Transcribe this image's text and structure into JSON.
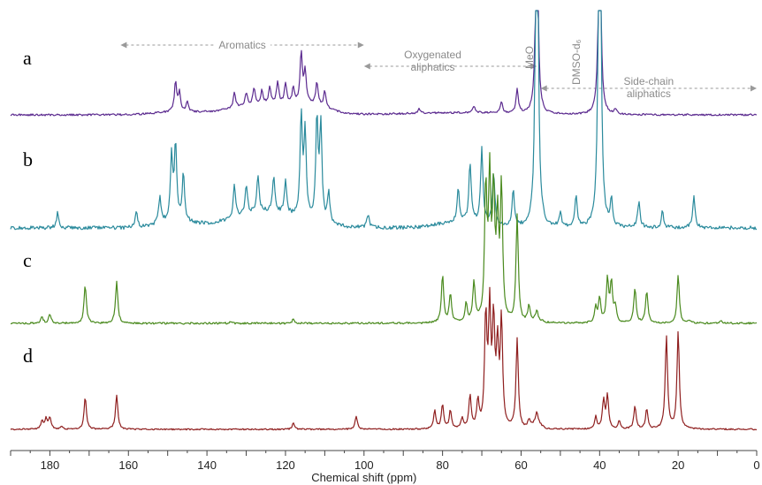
{
  "chart_data": {
    "type": "line",
    "xlabel": "Chemical shift (ppm)",
    "xlim": [
      190,
      0
    ],
    "x_reversed": true,
    "xticks": [
      180,
      160,
      140,
      120,
      100,
      80,
      60,
      40,
      20,
      0
    ],
    "grid": false,
    "series": [
      {
        "name": "a",
        "color": "#5b2a8f",
        "peaks": [
          [
            148,
            0.55
          ],
          [
            147,
            0.35
          ],
          [
            145,
            0.2
          ],
          [
            133,
            0.28
          ],
          [
            130,
            0.25
          ],
          [
            128,
            0.3
          ],
          [
            126,
            0.25
          ],
          [
            124,
            0.3
          ],
          [
            122,
            0.42
          ],
          [
            120,
            0.38
          ],
          [
            118,
            0.3
          ],
          [
            116,
            0.95
          ],
          [
            115,
            0.6
          ],
          [
            112,
            0.42
          ],
          [
            110,
            0.3
          ],
          [
            86,
            0.08
          ],
          [
            72,
            0.12
          ],
          [
            65,
            0.2
          ],
          [
            61,
            0.45
          ],
          [
            56,
            4.5
          ],
          [
            40,
            4.5
          ],
          [
            36,
            0.1
          ]
        ],
        "humps": [
          [
            148,
            8,
            0.05
          ],
          [
            125,
            12,
            0.2
          ],
          [
            113,
            6,
            0.12
          ],
          [
            75,
            20,
            0.04
          ]
        ]
      },
      {
        "name": "b",
        "color": "#2a8a9c",
        "peaks": [
          [
            178,
            0.15
          ],
          [
            158,
            0.15
          ],
          [
            152,
            0.25
          ],
          [
            149,
            0.6
          ],
          [
            148,
            0.7
          ],
          [
            146,
            0.45
          ],
          [
            133,
            0.3
          ],
          [
            130,
            0.28
          ],
          [
            127,
            0.35
          ],
          [
            123,
            0.35
          ],
          [
            120,
            0.3
          ],
          [
            116,
            0.95
          ],
          [
            115,
            0.8
          ],
          [
            112,
            0.95
          ],
          [
            111,
            0.9
          ],
          [
            109,
            0.3
          ],
          [
            99,
            0.12
          ],
          [
            76,
            0.3
          ],
          [
            73,
            0.55
          ],
          [
            70,
            0.7
          ],
          [
            67,
            0.5
          ],
          [
            62,
            0.35
          ],
          [
            56,
            4.5
          ],
          [
            50,
            0.12
          ],
          [
            46,
            0.3
          ],
          [
            40,
            4.5
          ],
          [
            37,
            0.25
          ],
          [
            30,
            0.25
          ],
          [
            24,
            0.15
          ],
          [
            16,
            0.3
          ]
        ],
        "humps": [
          [
            148,
            6,
            0.06
          ],
          [
            125,
            12,
            0.15
          ],
          [
            75,
            8,
            0.06
          ]
        ]
      },
      {
        "name": "c",
        "color": "#4a8a1e",
        "peaks": [
          [
            182,
            0.12
          ],
          [
            180,
            0.18
          ],
          [
            171,
            0.72
          ],
          [
            163,
            0.78
          ],
          [
            134,
            0.04
          ],
          [
            118,
            0.08
          ],
          [
            80,
            0.9
          ],
          [
            78,
            0.55
          ],
          [
            74,
            0.35
          ],
          [
            72,
            0.75
          ],
          [
            69,
            2.5
          ],
          [
            68,
            2.6
          ],
          [
            67,
            2.3
          ],
          [
            66,
            1.8
          ],
          [
            65,
            2.5
          ],
          [
            61,
            2.0
          ],
          [
            58,
            0.3
          ],
          [
            56,
            0.18
          ],
          [
            41,
            0.3
          ],
          [
            40,
            0.45
          ],
          [
            38,
            0.8
          ],
          [
            37,
            0.75
          ],
          [
            36,
            0.3
          ],
          [
            31,
            0.65
          ],
          [
            28,
            0.6
          ],
          [
            20,
            0.9
          ],
          [
            17,
            0.05
          ],
          [
            9,
            0.05
          ]
        ],
        "humps": [
          [
            56,
            2,
            0.04
          ]
        ]
      },
      {
        "name": "d",
        "color": "#8f1f1f",
        "peaks": [
          [
            182,
            0.2
          ],
          [
            181,
            0.25
          ],
          [
            180,
            0.3
          ],
          [
            177,
            0.08
          ],
          [
            171,
            0.8
          ],
          [
            163,
            0.85
          ],
          [
            118,
            0.15
          ],
          [
            102,
            0.32
          ],
          [
            82,
            0.45
          ],
          [
            80,
            0.6
          ],
          [
            78,
            0.45
          ],
          [
            75,
            0.25
          ],
          [
            73,
            0.8
          ],
          [
            71,
            0.65
          ],
          [
            69,
            2.7
          ],
          [
            68,
            2.8
          ],
          [
            67,
            2.5
          ],
          [
            66,
            1.9
          ],
          [
            65,
            2.6
          ],
          [
            61,
            2.2
          ],
          [
            58,
            0.2
          ],
          [
            56,
            0.25
          ],
          [
            41,
            0.3
          ],
          [
            39,
            0.7
          ],
          [
            38,
            0.8
          ],
          [
            35,
            0.2
          ],
          [
            31,
            0.55
          ],
          [
            28,
            0.5
          ],
          [
            23,
            2.3
          ],
          [
            20,
            2.4
          ]
        ],
        "humps": [
          [
            56,
            1.5,
            0.15
          ]
        ]
      }
    ],
    "annotations": [
      {
        "text": "Aromatics",
        "from": 162,
        "to": 100,
        "row": "a",
        "kind": "range"
      },
      {
        "text": "Oxygenated",
        "text2": "aliphatics",
        "from": 100,
        "to": 56,
        "row": "a",
        "kind": "range"
      },
      {
        "text": "MeO",
        "at": 57,
        "row": "a",
        "kind": "vertical"
      },
      {
        "text": "DMSO-d₆",
        "at": 45,
        "row": "a",
        "kind": "vertical"
      },
      {
        "text": "Side-chain",
        "text2": "aliphatics",
        "from": 55,
        "to": 0,
        "row": "a",
        "kind": "range"
      }
    ]
  }
}
